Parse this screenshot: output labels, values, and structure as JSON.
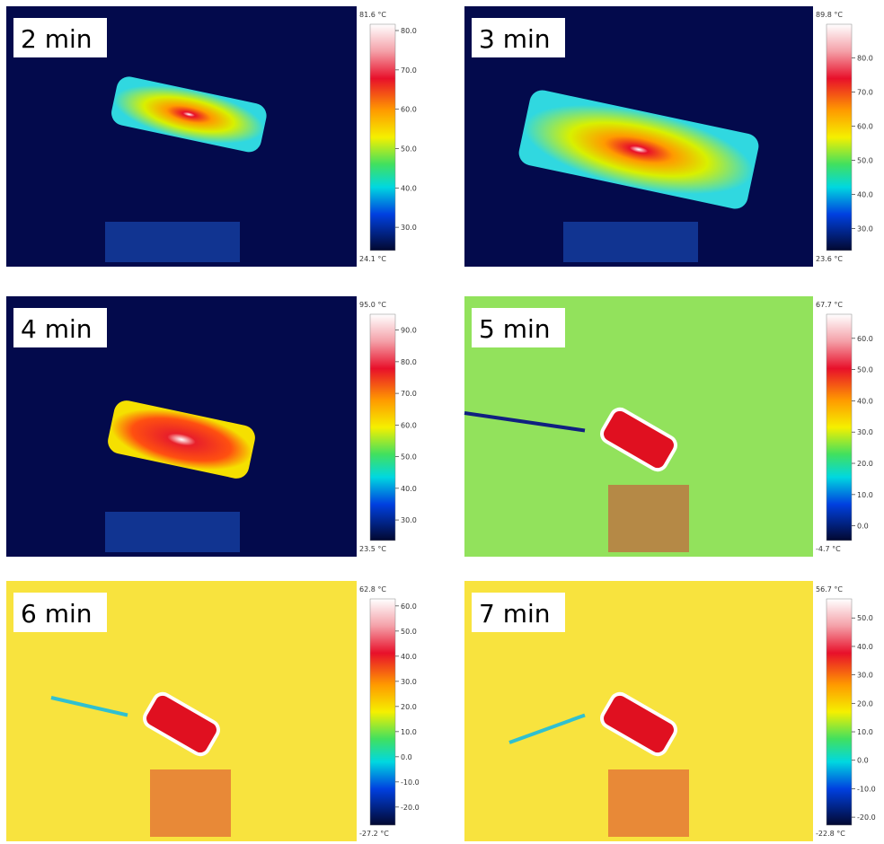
{
  "panels": [
    {
      "label": "2 min",
      "max_label": "81.6 °C",
      "min_label": "24.1 °C",
      "ticks": [
        "80.0",
        "70.0",
        "60.0",
        "50.0",
        "40.0",
        "30.0"
      ]
    },
    {
      "label": "3 min",
      "max_label": "89.8 °C",
      "min_label": "23.6 °C",
      "ticks": [
        "80.0",
        "70.0",
        "60.0",
        "50.0",
        "40.0",
        "30.0"
      ]
    },
    {
      "label": "4 min",
      "max_label": "95.0 °C",
      "min_label": "23.5 °C",
      "ticks": [
        "90.0",
        "80.0",
        "70.0",
        "60.0",
        "50.0",
        "40.0",
        "30.0"
      ]
    },
    {
      "label": "5 min",
      "max_label": "67.7 °C",
      "min_label": "-4.7 °C",
      "ticks": [
        "60.0",
        "50.0",
        "40.0",
        "30.0",
        "20.0",
        "10.0",
        "0.0"
      ]
    },
    {
      "label": "6 min",
      "max_label": "62.8 °C",
      "min_label": "-27.2 °C",
      "ticks": [
        "60.0",
        "50.0",
        "40.0",
        "30.0",
        "20.0",
        "10.0",
        "0.0",
        "-10.0",
        "-20.0"
      ]
    },
    {
      "label": "7 min",
      "max_label": "56.7 °C",
      "min_label": "-22.8 °C",
      "ticks": [
        "50.0",
        "40.0",
        "30.0",
        "20.0",
        "10.0",
        "0.0",
        "-10.0",
        "-20.0"
      ]
    }
  ]
}
